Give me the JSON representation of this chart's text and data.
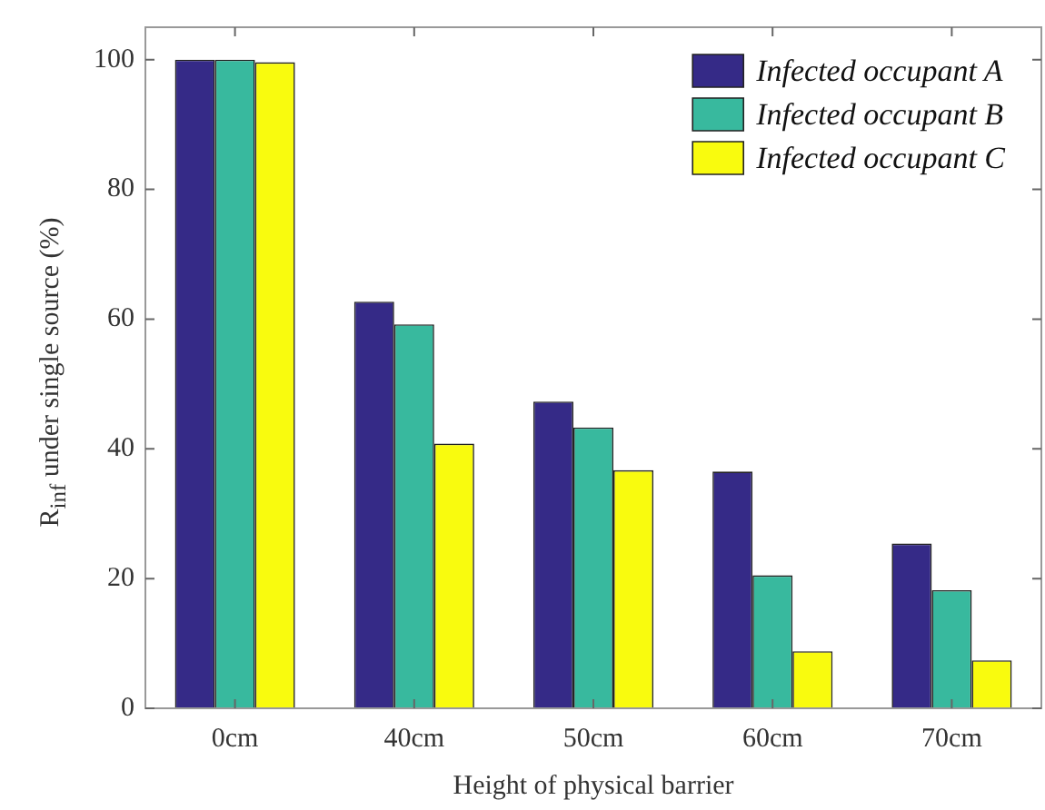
{
  "chart_data": {
    "type": "bar",
    "xlabel": "Height of physical barrier",
    "ylabel": "R$_{inf}$ under single source (%)",
    "categories": [
      "0cm",
      "40cm",
      "50cm",
      "60cm",
      "70cm"
    ],
    "series": [
      {
        "name": "Infected occupant A",
        "color": "#352a87",
        "values": [
          100,
          62.7,
          47.3,
          36.5,
          25.4
        ]
      },
      {
        "name": "Infected occupant B",
        "color": "#38b99e",
        "values": [
          100,
          59.2,
          43.3,
          20.5,
          18.2
        ]
      },
      {
        "name": "Infected occupant C",
        "color": "#f9fb0e",
        "values": [
          99.6,
          40.8,
          36.7,
          8.8,
          7.4
        ]
      }
    ],
    "ylim": [
      0,
      105
    ],
    "yticks": [
      0,
      20,
      40,
      60,
      80,
      100
    ],
    "grid": false,
    "legend": "top right"
  }
}
